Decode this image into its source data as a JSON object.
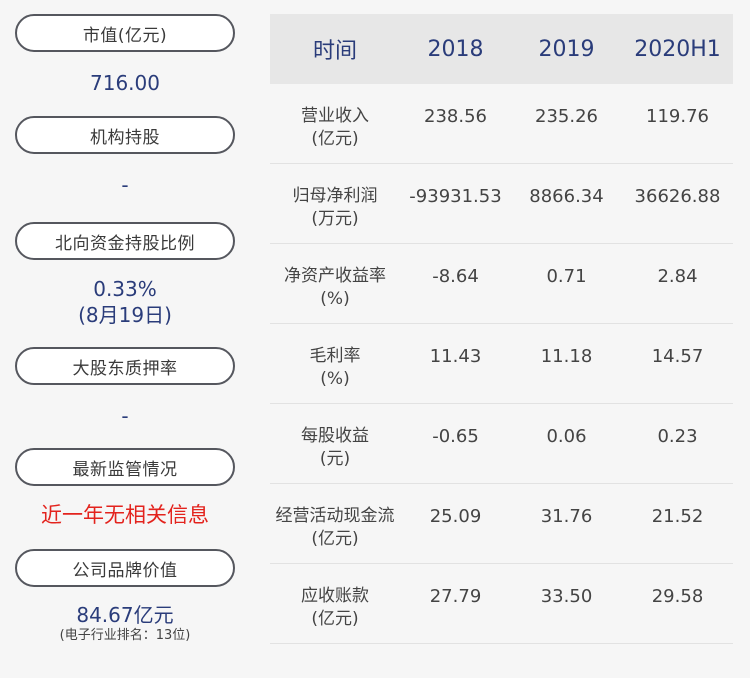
{
  "left": [
    {
      "label": "市值(亿元)",
      "value": "716.00"
    },
    {
      "label": "机构持股",
      "value": "-"
    },
    {
      "label": "北向资金持股比例",
      "value": "0.33%",
      "value2": "(8月19日)"
    },
    {
      "label": "大股东质押率",
      "value": "-"
    },
    {
      "label": "最新监管情况",
      "value": "近一年无相关信息"
    },
    {
      "label": "公司品牌价值",
      "value": "84.67亿元",
      "note": "(电子行业排名：13位)"
    }
  ],
  "table": {
    "headers": [
      "时间",
      "2018",
      "2019",
      "2020H1"
    ],
    "rows": [
      {
        "label": "营业收入",
        "unit": "(亿元)",
        "values": [
          "238.56",
          "235.26",
          "119.76"
        ]
      },
      {
        "label": "归母净利润",
        "unit": "(万元)",
        "values": [
          "-93931.53",
          "8866.34",
          "36626.88"
        ]
      },
      {
        "label": "净资产收益率",
        "unit": "(%)",
        "values": [
          "-8.64",
          "0.71",
          "2.84"
        ]
      },
      {
        "label": "毛利率",
        "unit": "(%)",
        "values": [
          "11.43",
          "11.18",
          "14.57"
        ]
      },
      {
        "label": "每股收益",
        "unit": "(元)",
        "values": [
          "-0.65",
          "0.06",
          "0.23"
        ]
      },
      {
        "label": "经营活动现金流",
        "unit": "(亿元)",
        "values": [
          "25.09",
          "31.76",
          "21.52"
        ]
      },
      {
        "label": "应收账款",
        "unit": "(亿元)",
        "values": [
          "27.79",
          "33.50",
          "29.58"
        ]
      }
    ]
  },
  "colors": {
    "value_blue": "#2a3c7a",
    "alert_red": "#e3231d",
    "header_bg": "#e7e7e7"
  }
}
